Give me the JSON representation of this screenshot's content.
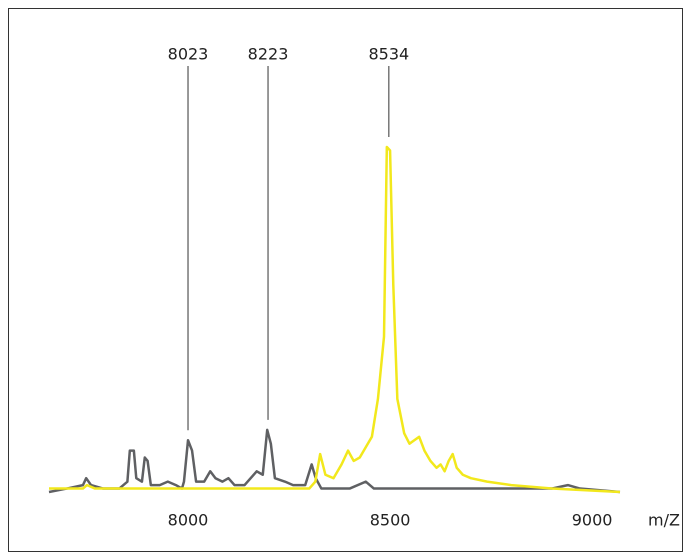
{
  "chart_data": {
    "type": "line",
    "x_label": "m/Z",
    "xlim": [
      7656,
      9069
    ],
    "ylim": [
      0,
      100
    ],
    "xticks": [
      8000,
      8500,
      9000
    ],
    "grid": false,
    "annotations": [
      {
        "label": "8023",
        "x": 8000
      },
      {
        "label": "8223",
        "x": 8198
      },
      {
        "label": "8534",
        "x": 8497
      }
    ],
    "series": [
      {
        "color": "#5f6063",
        "x": [
          7656,
          7700,
          7740,
          7748,
          7760,
          7790,
          7830,
          7850,
          7856,
          7866,
          7872,
          7886,
          7893,
          7900,
          7908,
          7930,
          7950,
          7970,
          7985,
          7990,
          8000,
          8010,
          8020,
          8040,
          8055,
          8068,
          8085,
          8100,
          8115,
          8140,
          8170,
          8185,
          8196,
          8205,
          8215,
          8240,
          8260,
          8290,
          8306,
          8316,
          8330,
          8400,
          8440,
          8460,
          8600,
          8700,
          8800,
          8900,
          8940,
          8970,
          9069
        ],
        "values": [
          0,
          1,
          2,
          4,
          2,
          1,
          1,
          3,
          12,
          12,
          4,
          3,
          10,
          9,
          2,
          2,
          3,
          2,
          1,
          3,
          15,
          12,
          3,
          3,
          6,
          4,
          3,
          4,
          2,
          2,
          6,
          5,
          18,
          14,
          4,
          3,
          2,
          2,
          8,
          4,
          1,
          1,
          3,
          1,
          1,
          1,
          1,
          1,
          2,
          1,
          0
        ]
      },
      {
        "color": "#f2e81c",
        "x": [
          7656,
          7740,
          7750,
          7770,
          8300,
          8315,
          8327,
          8340,
          8360,
          8380,
          8396,
          8410,
          8425,
          8440,
          8455,
          8470,
          8485,
          8492,
          8500,
          8508,
          8518,
          8535,
          8548,
          8560,
          8572,
          8585,
          8600,
          8615,
          8625,
          8635,
          8645,
          8655,
          8665,
          8680,
          8700,
          8740,
          8800,
          8900,
          9069
        ],
        "values": [
          1,
          1,
          2,
          1,
          1,
          3,
          11,
          5,
          4,
          8,
          12,
          9,
          10,
          13,
          16,
          27,
          45,
          100,
          99,
          60,
          27,
          17,
          14,
          15,
          16,
          12,
          9,
          7,
          8,
          6,
          9,
          11,
          7,
          5,
          4,
          3,
          2,
          1,
          0
        ]
      }
    ]
  }
}
